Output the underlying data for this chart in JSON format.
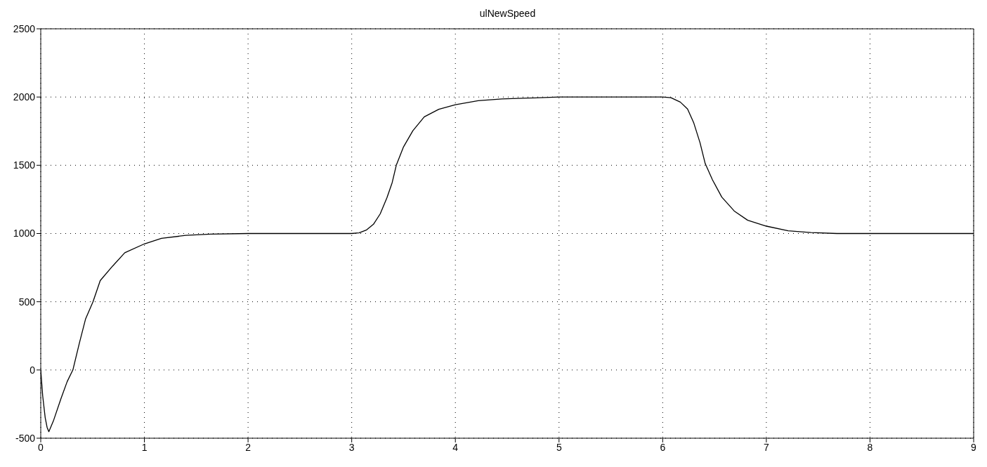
{
  "chart_data": {
    "type": "line",
    "title": "ulNewSpeed",
    "x": [
      0,
      0.019,
      0.043,
      0.061,
      0.078,
      0.125,
      0.196,
      0.255,
      0.31,
      0.373,
      0.433,
      0.504,
      0.574,
      0.693,
      0.811,
      1.0,
      1.165,
      1.4,
      1.64,
      2.0,
      2.5,
      3.0,
      3.07,
      3.14,
      3.21,
      3.275,
      3.34,
      3.39,
      3.43,
      3.5,
      3.59,
      3.7,
      3.84,
      4.0,
      4.22,
      4.45,
      4.7,
      5.0,
      5.5,
      6.0,
      6.08,
      6.17,
      6.24,
      6.3,
      6.36,
      6.41,
      6.48,
      6.57,
      6.69,
      6.82,
      7.0,
      7.21,
      7.43,
      7.68,
      8.0,
      8.5,
      9.0
    ],
    "series": [
      {
        "color": "#000000",
        "values": [
          0,
          -191,
          -350,
          -420,
          -452,
          -367,
          -208,
          -85,
          0,
          198,
          375,
          500,
          655,
          761,
          859,
          924,
          965,
          986,
          996,
          1000,
          1000,
          1000,
          1005,
          1025,
          1068,
          1144,
          1262,
          1372,
          1500,
          1635,
          1753,
          1855,
          1910,
          1944,
          1973,
          1986,
          1992,
          2000,
          2000,
          2000,
          1995,
          1963,
          1912,
          1810,
          1666,
          1513,
          1394,
          1267,
          1165,
          1097,
          1054,
          1020,
          1007,
          1000,
          1000,
          1000,
          1000
        ]
      }
    ],
    "xlim": [
      0,
      9
    ],
    "xticks": [
      0,
      1,
      2,
      3,
      4,
      5,
      6,
      7,
      8,
      9
    ],
    "ylim": [
      -500,
      2500
    ],
    "yticks": [
      -500,
      0,
      500,
      1000,
      1500,
      2000,
      2500
    ],
    "grid": true
  }
}
